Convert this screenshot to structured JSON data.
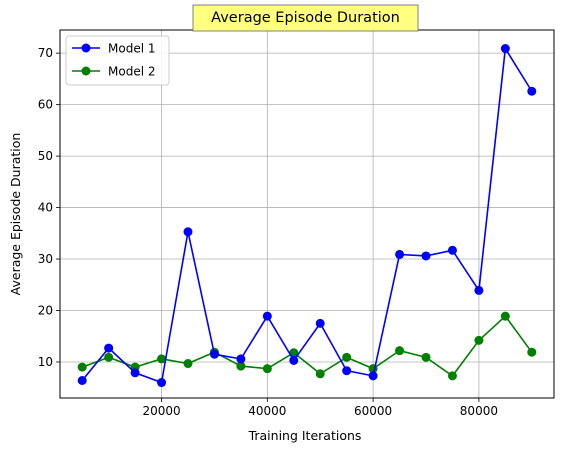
{
  "chart_data": {
    "type": "line",
    "title": "Average Episode Duration",
    "xlabel": "Training Iterations",
    "ylabel": "Average Episode Duration",
    "xlim": [
      800,
      94200
    ],
    "ylim": [
      3.0,
      74.5
    ],
    "xticks": [
      20000,
      40000,
      60000,
      80000
    ],
    "yticks": [
      10,
      20,
      30,
      40,
      50,
      60,
      70
    ],
    "grid": true,
    "legend_position": "top-left",
    "title_box_color": "#ffff80",
    "x": [
      5000,
      10000,
      15000,
      20000,
      25000,
      30000,
      35000,
      40000,
      45000,
      50000,
      55000,
      60000,
      65000,
      70000,
      75000,
      80000,
      85000,
      90000
    ],
    "series": [
      {
        "name": "Model 1",
        "color": "#0000ff",
        "values": [
          6.4,
          12.7,
          7.9,
          6.0,
          35.3,
          11.5,
          10.6,
          18.9,
          10.3,
          17.5,
          8.3,
          7.3,
          30.9,
          30.6,
          31.7,
          23.9,
          70.9,
          62.6
        ]
      },
      {
        "name": "Model 2",
        "color": "#008000",
        "values": [
          9.0,
          10.9,
          9.0,
          10.6,
          9.7,
          11.9,
          9.2,
          8.7,
          11.8,
          7.7,
          10.9,
          8.7,
          12.2,
          10.9,
          7.3,
          14.2,
          18.9,
          11.9
        ]
      }
    ]
  }
}
